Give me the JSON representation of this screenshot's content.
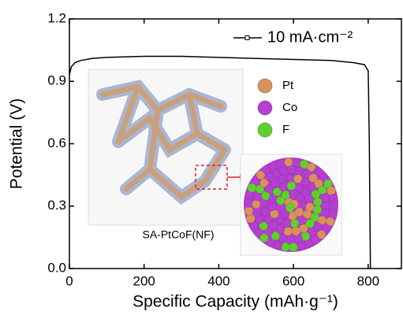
{
  "chart_data": {
    "type": "line",
    "x_label": "Specific Capacity (mAh·g⁻¹)",
    "y_label": "Potential (V)",
    "x": [
      0,
      5,
      15,
      30,
      60,
      100,
      200,
      300,
      400,
      500,
      600,
      700,
      760,
      790,
      800,
      803,
      805,
      806
    ],
    "series": [
      {
        "name": "10 mA·cm⁻²",
        "color": "#000000",
        "values": [
          0.93,
          0.97,
          0.99,
          1.0,
          1.01,
          1.015,
          1.02,
          1.02,
          1.015,
          1.01,
          1.005,
          1.0,
          0.99,
          0.98,
          0.95,
          0.6,
          0.2,
          0.0
        ]
      }
    ],
    "xlim": [
      0,
      889
    ],
    "ylim": [
      0,
      1.2
    ],
    "xticks": [
      0,
      200,
      400,
      600,
      800
    ],
    "yticks": [
      {
        "value": 0,
        "label": "0.0"
      },
      0.3,
      0.6,
      0.9,
      1.2
    ],
    "annotations": [
      "SA-PtCoF(NF)"
    ],
    "inset_legend": [
      {
        "name": "Pt",
        "color": "#d9925a"
      },
      {
        "name": "Co",
        "color": "#b53fd1"
      },
      {
        "name": "F",
        "color": "#5fd12a"
      }
    ]
  }
}
